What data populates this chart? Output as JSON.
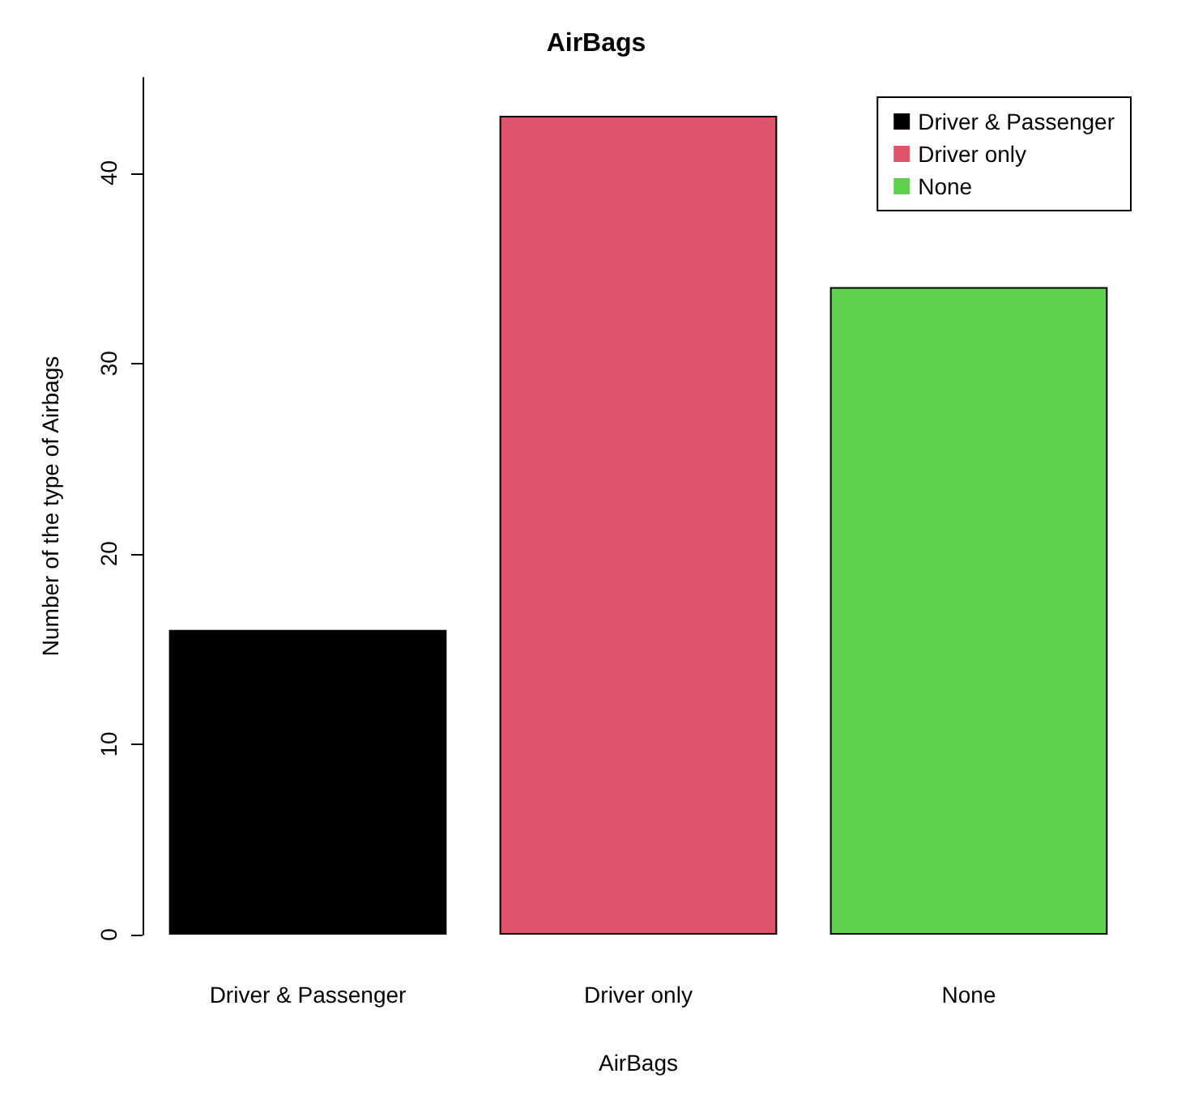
{
  "chart_data": {
    "type": "bar",
    "title": "AirBags",
    "xlabel": "AirBags",
    "ylabel": "Number of the type of Airbags",
    "categories": [
      "Driver & Passenger",
      "Driver only",
      "None"
    ],
    "series": [
      {
        "name": "Driver & Passenger",
        "color": "#000000",
        "values": [
          16,
          null,
          null
        ]
      },
      {
        "name": "Driver only",
        "color": "#df536b",
        "values": [
          null,
          43,
          null
        ]
      },
      {
        "name": "None",
        "color": "#61d04f",
        "values": [
          null,
          null,
          34
        ]
      }
    ],
    "stacked": true,
    "ylim": [
      0,
      45
    ],
    "yticks": [
      0,
      10,
      20,
      30,
      40
    ],
    "grid": false,
    "legend": "top right"
  }
}
